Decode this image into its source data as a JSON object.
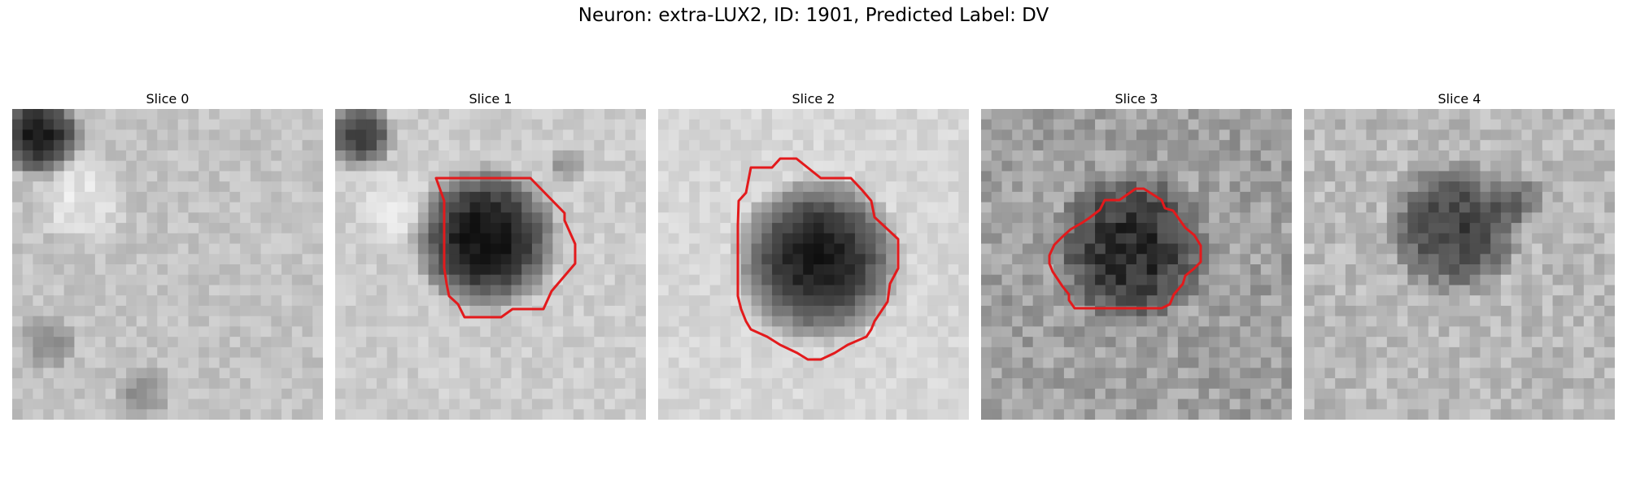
{
  "figure": {
    "title": "Neuron: extra-LUX2, ID: 1901, Predicted Label: DV"
  },
  "slices": [
    {
      "label": "Slice 0",
      "has_contour": false
    },
    {
      "label": "Slice 1",
      "has_contour": true
    },
    {
      "label": "Slice 2",
      "has_contour": true
    },
    {
      "label": "Slice 3",
      "has_contour": true
    },
    {
      "label": "Slice 4",
      "has_contour": false
    }
  ],
  "colors": {
    "contour": "#e31a1c",
    "background": "#ffffff"
  }
}
